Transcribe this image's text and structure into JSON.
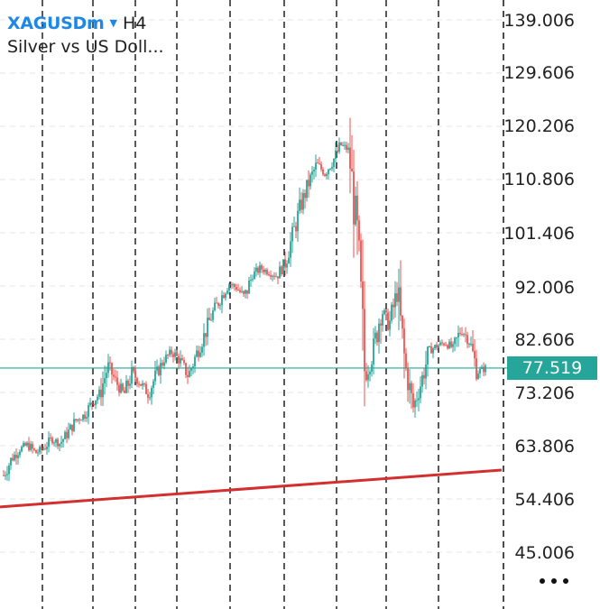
{
  "header": {
    "symbol": "XAGUSDm",
    "symbol_caret_icon": "caret-down-icon",
    "timeframe": "H4",
    "description": "Silver vs US Doll..."
  },
  "price_axis": {
    "labels": [
      "139.006",
      "129.606",
      "120.206",
      "110.806",
      "101.406",
      "92.006",
      "82.606",
      "73.206",
      "63.806",
      "54.406",
      "45.006"
    ],
    "current_price": "77.519"
  },
  "colors": {
    "accent": "#1e88e5",
    "bull": "#26a69a",
    "bear": "#ef5350",
    "current_line": "#26a69a",
    "trendline": "#d32f2f",
    "grid": "#e6e6e6",
    "period_separator": "#000000"
  },
  "chart_data": {
    "type": "candlestick",
    "symbol": "XAGUSDm",
    "timeframe": "H4",
    "ylim": [
      45.006,
      139.006
    ],
    "y_ticks": [
      139.006,
      129.606,
      120.206,
      110.806,
      101.406,
      92.006,
      82.606,
      73.206,
      63.806,
      54.406,
      45.006
    ],
    "current_price": 77.519,
    "close_path": [
      58.6,
      61.5,
      63.2,
      64.0,
      62.5,
      63.4,
      65.0,
      64.2,
      66.1,
      68.3,
      69.2,
      71.4,
      73.1,
      77.9,
      75.0,
      72.8,
      76.6,
      74.9,
      73.0,
      76.4,
      79.1,
      80.4,
      78.7,
      76.1,
      80.0,
      83.4,
      87.2,
      89.8,
      92.5,
      91.7,
      90.0,
      94.0,
      95.1,
      94.5,
      93.8,
      96.0,
      101.0,
      106.2,
      110.3,
      113.5,
      112.0,
      114.1,
      116.9,
      116.0,
      100.5,
      76.0,
      80.0,
      88.0,
      85.0,
      91.0,
      78.0,
      70.5,
      75.0,
      80.6,
      81.5,
      82.0,
      81.0,
      84.5,
      82.3,
      76.8,
      77.519
    ],
    "trendline": {
      "from": 53.0,
      "to": 59.5
    },
    "period_separators": 11
  }
}
